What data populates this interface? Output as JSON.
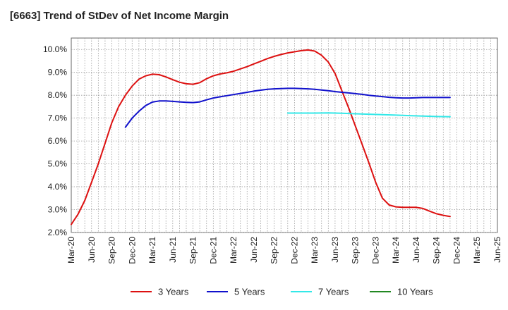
{
  "chart_data": {
    "type": "line",
    "title": "[6663]  Trend of StDev of Net Income Margin",
    "xlabel": "",
    "ylabel": "",
    "ylim": [
      2.0,
      10.5
    ],
    "yticks": [
      "2.0%",
      "3.0%",
      "4.0%",
      "5.0%",
      "6.0%",
      "7.0%",
      "8.0%",
      "9.0%",
      "10.0%"
    ],
    "ytick_values": [
      2,
      3,
      4,
      5,
      6,
      7,
      8,
      9,
      10
    ],
    "x_ticks": [
      "Mar-20",
      "Jun-20",
      "Sep-20",
      "Dec-20",
      "Mar-21",
      "Jun-21",
      "Sep-21",
      "Dec-21",
      "Mar-22",
      "Jun-22",
      "Sep-22",
      "Dec-22",
      "Mar-23",
      "Jun-23",
      "Sep-23",
      "Dec-23",
      "Mar-24",
      "Jun-24",
      "Sep-24",
      "Dec-24",
      "Mar-25",
      "Jun-25"
    ],
    "grid": true,
    "legend_position": "bottom",
    "series": [
      {
        "name": "3 Years",
        "color": "#dd1111",
        "points": [
          [
            0,
            2.35
          ],
          [
            1,
            2.8
          ],
          [
            2,
            3.4
          ],
          [
            3,
            4.2
          ],
          [
            4,
            5.0
          ],
          [
            5,
            5.9
          ],
          [
            6,
            6.8
          ],
          [
            7,
            7.5
          ],
          [
            8,
            8.0
          ],
          [
            9,
            8.4
          ],
          [
            10,
            8.7
          ],
          [
            11,
            8.85
          ],
          [
            12,
            8.92
          ],
          [
            13,
            8.9
          ],
          [
            14,
            8.8
          ],
          [
            15,
            8.68
          ],
          [
            16,
            8.57
          ],
          [
            17,
            8.5
          ],
          [
            18,
            8.48
          ],
          [
            19,
            8.55
          ],
          [
            20,
            8.72
          ],
          [
            21,
            8.85
          ],
          [
            22,
            8.93
          ],
          [
            23,
            8.98
          ],
          [
            24,
            9.05
          ],
          [
            25,
            9.15
          ],
          [
            26,
            9.25
          ],
          [
            27,
            9.37
          ],
          [
            28,
            9.48
          ],
          [
            29,
            9.6
          ],
          [
            30,
            9.7
          ],
          [
            31,
            9.78
          ],
          [
            32,
            9.85
          ],
          [
            33,
            9.9
          ],
          [
            34,
            9.95
          ],
          [
            35,
            9.98
          ],
          [
            36,
            9.93
          ],
          [
            37,
            9.75
          ],
          [
            38,
            9.45
          ],
          [
            39,
            8.95
          ],
          [
            40,
            8.2
          ],
          [
            41,
            7.45
          ],
          [
            42,
            6.65
          ],
          [
            43,
            5.85
          ],
          [
            44,
            5.05
          ],
          [
            45,
            4.2
          ],
          [
            46,
            3.5
          ],
          [
            47,
            3.2
          ],
          [
            48,
            3.12
          ],
          [
            49,
            3.1
          ],
          [
            50,
            3.1
          ],
          [
            51,
            3.1
          ],
          [
            52,
            3.05
          ],
          [
            53,
            2.93
          ],
          [
            54,
            2.82
          ],
          [
            55,
            2.75
          ],
          [
            56,
            2.7
          ]
        ]
      },
      {
        "name": "5 Years",
        "color": "#1111cc",
        "points": [
          [
            8,
            6.6
          ],
          [
            9,
            7.0
          ],
          [
            10,
            7.3
          ],
          [
            11,
            7.55
          ],
          [
            12,
            7.7
          ],
          [
            13,
            7.75
          ],
          [
            14,
            7.75
          ],
          [
            15,
            7.73
          ],
          [
            16,
            7.71
          ],
          [
            17,
            7.69
          ],
          [
            18,
            7.68
          ],
          [
            19,
            7.71
          ],
          [
            20,
            7.8
          ],
          [
            21,
            7.88
          ],
          [
            22,
            7.93
          ],
          [
            23,
            7.98
          ],
          [
            24,
            8.03
          ],
          [
            25,
            8.08
          ],
          [
            26,
            8.13
          ],
          [
            27,
            8.18
          ],
          [
            28,
            8.22
          ],
          [
            29,
            8.26
          ],
          [
            30,
            8.28
          ],
          [
            31,
            8.29
          ],
          [
            32,
            8.3
          ],
          [
            33,
            8.3
          ],
          [
            34,
            8.29
          ],
          [
            35,
            8.28
          ],
          [
            36,
            8.26
          ],
          [
            37,
            8.23
          ],
          [
            38,
            8.2
          ],
          [
            39,
            8.16
          ],
          [
            40,
            8.13
          ],
          [
            41,
            8.1
          ],
          [
            42,
            8.07
          ],
          [
            43,
            8.04
          ],
          [
            44,
            8.0
          ],
          [
            45,
            7.97
          ],
          [
            46,
            7.94
          ],
          [
            47,
            7.91
          ],
          [
            48,
            7.89
          ],
          [
            49,
            7.88
          ],
          [
            50,
            7.88
          ],
          [
            51,
            7.89
          ],
          [
            52,
            7.9
          ],
          [
            53,
            7.9
          ],
          [
            54,
            7.9
          ],
          [
            55,
            7.9
          ],
          [
            56,
            7.9
          ]
        ]
      },
      {
        "name": "7 Years",
        "color": "#33e8e8",
        "points": [
          [
            32,
            7.22
          ],
          [
            34,
            7.22
          ],
          [
            36,
            7.22
          ],
          [
            38,
            7.23
          ],
          [
            40,
            7.21
          ],
          [
            42,
            7.19
          ],
          [
            44,
            7.17
          ],
          [
            46,
            7.15
          ],
          [
            48,
            7.13
          ],
          [
            50,
            7.11
          ],
          [
            52,
            7.09
          ],
          [
            54,
            7.07
          ],
          [
            56,
            7.06
          ]
        ]
      },
      {
        "name": "10 Years",
        "color": "#228822",
        "points": []
      }
    ]
  }
}
